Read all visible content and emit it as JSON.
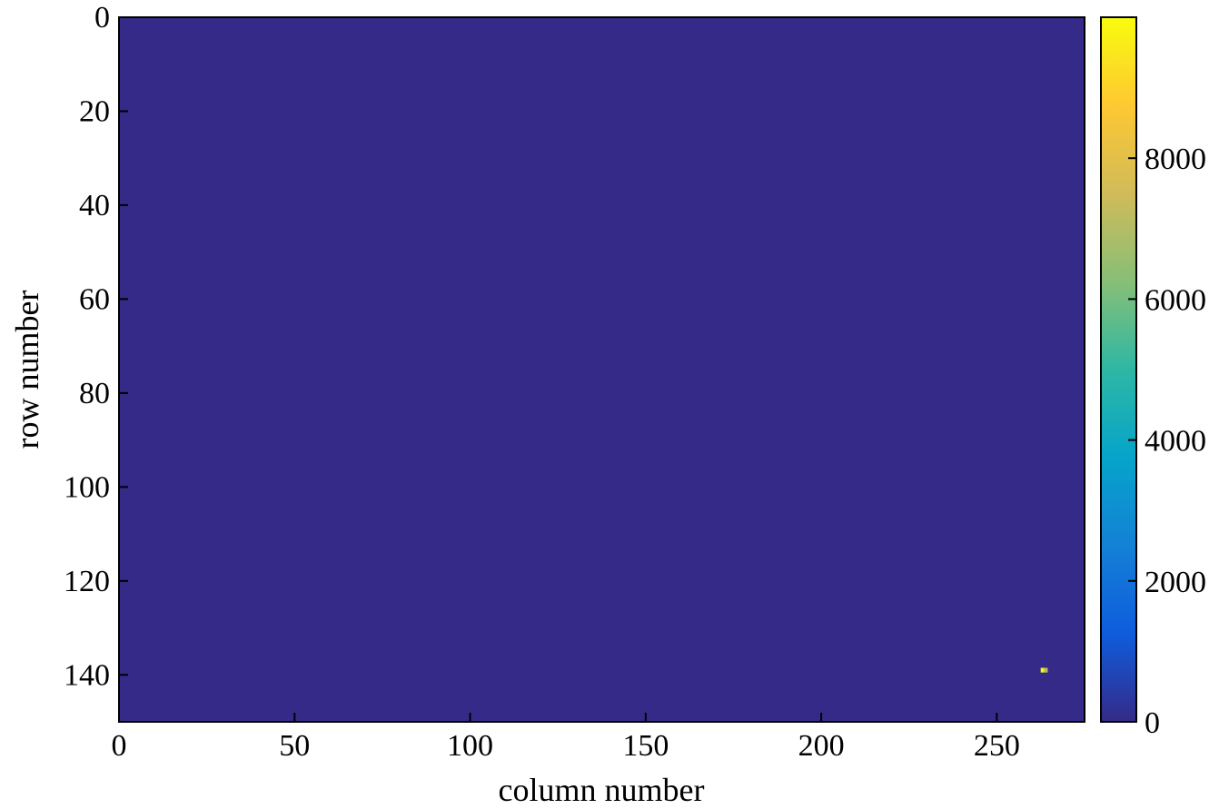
{
  "chart_data": {
    "type": "heatmap",
    "xlabel": "column number",
    "ylabel": "row number",
    "xlim": [
      0,
      275
    ],
    "ylim": [
      150,
      0
    ],
    "x_ticks": [
      0,
      50,
      100,
      150,
      200,
      250
    ],
    "y_ticks": [
      0,
      20,
      40,
      60,
      80,
      100,
      120,
      140
    ],
    "x_tick_labels": [
      "0",
      "50",
      "100",
      "150",
      "200",
      "250"
    ],
    "y_tick_labels": [
      "0",
      "20",
      "40",
      "60",
      "80",
      "100",
      "120",
      "140"
    ],
    "background_value": 0,
    "bright_pixels": [
      {
        "column": 263,
        "row": 139,
        "value": 9800
      },
      {
        "column": 264,
        "row": 139,
        "value": 7000
      }
    ],
    "colorbar": {
      "range": [
        0,
        10000
      ],
      "ticks": [
        0,
        2000,
        4000,
        6000,
        8000
      ],
      "tick_labels": [
        "0",
        "2000",
        "4000",
        "6000",
        "8000"
      ],
      "colormap": "parula",
      "colors": [
        "#352a87",
        "#0f5cdd",
        "#1481d6",
        "#06a4ca",
        "#2eb7a4",
        "#87bf77",
        "#d1bb59",
        "#fec832",
        "#f9fb0e"
      ]
    },
    "grid": false
  }
}
